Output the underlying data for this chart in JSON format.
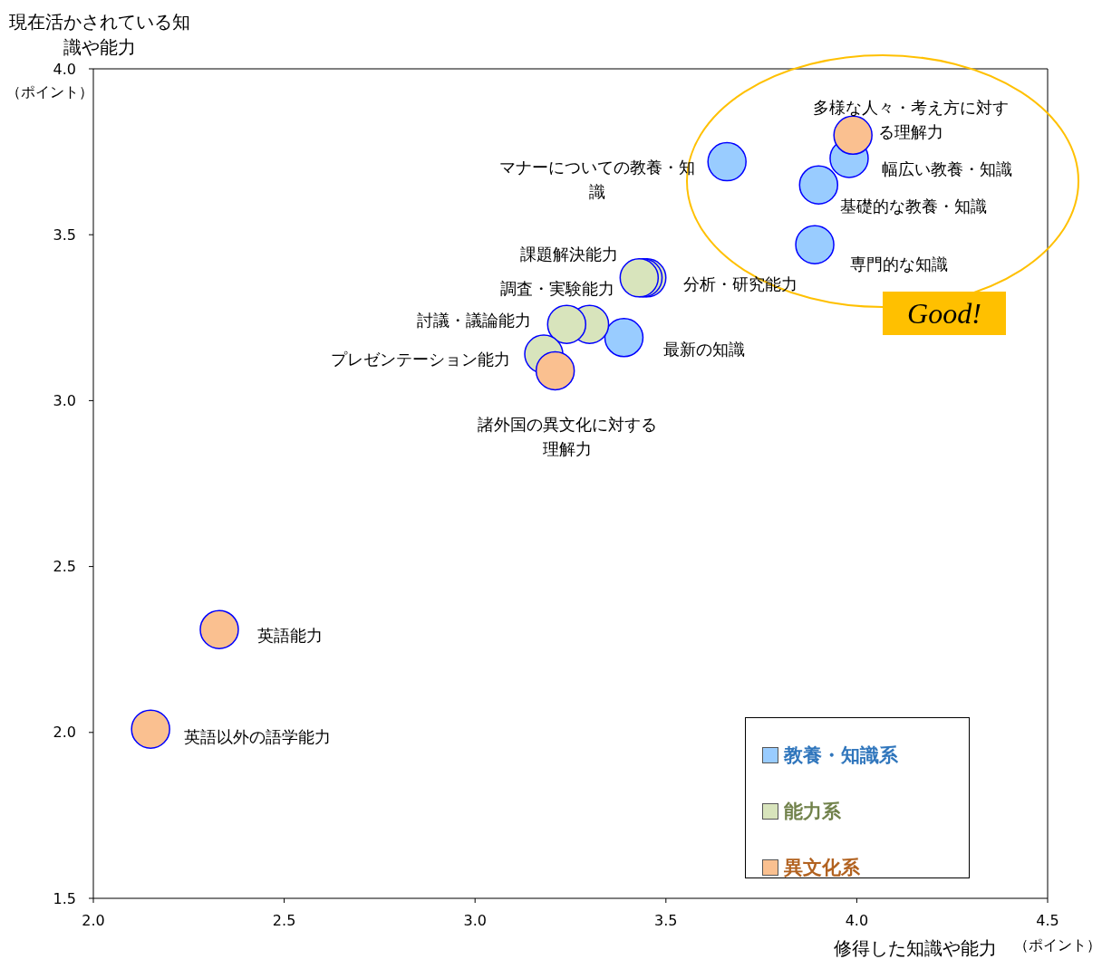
{
  "chart_data": {
    "type": "bubble",
    "xlabel": "修得した知識や能力",
    "ylabel": "現在活かされている知識や能力",
    "xlim": [
      2.0,
      4.5
    ],
    "xticks": [
      {
        "value": 2,
        "label": "2.0"
      },
      {
        "value": 2.5,
        "label": "2.5"
      },
      {
        "value": 3,
        "label": "3.0"
      },
      {
        "value": 3.5,
        "label": "3.5"
      },
      {
        "value": 4,
        "label": "4.0"
      },
      {
        "value": 4.5,
        "label": "4.5"
      }
    ],
    "ylim": [
      1.5,
      4.0
    ],
    "yticks": [
      {
        "value": 1.5,
        "label": "1.5"
      },
      {
        "value": 2,
        "label": "2.0"
      },
      {
        "value": 2.5,
        "label": "2.5"
      },
      {
        "value": 3,
        "label": "3.0"
      },
      {
        "value": 3.5,
        "label": "3.5"
      },
      {
        "value": 4,
        "label": "4.0"
      }
    ],
    "marker": "circle",
    "legend": "bottom right",
    "series": [
      {
        "name": "教養・知識系",
        "color": "#99ccff",
        "x": [
          3.66,
          3.98,
          3.9,
          3.89,
          3.39
        ],
        "values": [
          3.72,
          3.73,
          3.65,
          3.47,
          3.19
        ]
      },
      {
        "name": "能力系",
        "color": "#d8e4bc",
        "x": [
          3.45,
          3.44,
          3.43,
          3.3,
          3.24,
          3.18
        ],
        "values": [
          3.37,
          3.37,
          3.37,
          3.23,
          3.23,
          3.14
        ]
      },
      {
        "name": "異文化系",
        "color": "#fac090",
        "x": [
          3.99,
          3.21,
          2.33,
          2.15
        ],
        "values": [
          3.8,
          3.09,
          2.31,
          2.01
        ]
      }
    ],
    "annotations": [
      {
        "text": "多様な人々・考え方に対する理解力",
        "x": 3.99,
        "y": 3.8
      },
      {
        "text": "幅広い教養・知識",
        "x": 3.98,
        "y": 3.73
      },
      {
        "text": "マナーについての教養・知識",
        "x": 3.66,
        "y": 3.72
      },
      {
        "text": "基礎的な教養・知識",
        "x": 3.9,
        "y": 3.65
      },
      {
        "text": "専門的な知識",
        "x": 3.89,
        "y": 3.47
      },
      {
        "text": "課題解決能力",
        "x": 3.44,
        "y": 3.37
      },
      {
        "text": "分析・研究能力",
        "x": 3.45,
        "y": 3.37
      },
      {
        "text": "調査・実験能力",
        "x": 3.43,
        "y": 3.37
      },
      {
        "text": "討議・議論能力",
        "x": 3.24,
        "y": 3.23
      },
      {
        "text": "最新の知識",
        "x": 3.39,
        "y": 3.19
      },
      {
        "text": "プレゼンテーション能力",
        "x": 3.18,
        "y": 3.14
      },
      {
        "text": "諸外国の異文化に対する理解力",
        "x": 3.21,
        "y": 3.09
      },
      {
        "text": "英語能力",
        "x": 2.33,
        "y": 2.31
      },
      {
        "text": "英語以外の語学能力",
        "x": 2.15,
        "y": 2.01
      },
      "Good!",
      "（ポイント）",
      "（ポイント）"
    ]
  }
}
